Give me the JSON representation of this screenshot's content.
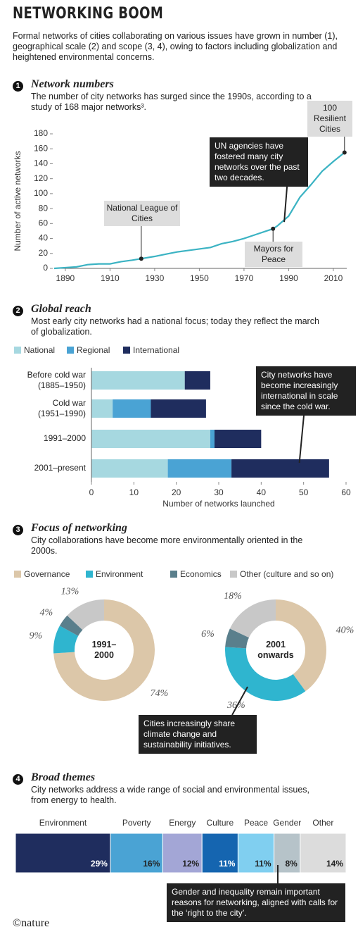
{
  "header": {
    "title": "NETWORKING BOOM",
    "subtitle": "Formal networks of cities collaborating on various issues have grown in number (1), geographical scale (2) and scope (3, 4), owing to factors including globalization and heightened environmental concerns."
  },
  "chart_data": [
    {
      "type": "line",
      "section": "1",
      "title": "Network numbers",
      "subtitle": "The number of city networks has surged since the 1990s, according to a study of 168 major networks³.",
      "ylabel": "Number of active networks",
      "x": [
        1885,
        1890,
        1895,
        1900,
        1905,
        1910,
        1915,
        1920,
        1924,
        1930,
        1935,
        1940,
        1945,
        1950,
        1955,
        1960,
        1965,
        1970,
        1975,
        1980,
        1983,
        1985,
        1990,
        1995,
        2000,
        2005,
        2010,
        2015
      ],
      "values": [
        0,
        1,
        2,
        5,
        6,
        6,
        9,
        11,
        13,
        16,
        19,
        22,
        24,
        26,
        28,
        33,
        36,
        40,
        45,
        50,
        53,
        57,
        70,
        95,
        112,
        130,
        143,
        155
      ],
      "color": "#3bb3c3",
      "xlim": [
        1885,
        2016
      ],
      "xticks": [
        1890,
        1910,
        1930,
        1950,
        1970,
        1990,
        2010
      ],
      "ylim": [
        0,
        180
      ],
      "yticks": [
        0,
        20,
        40,
        60,
        80,
        100,
        120,
        140,
        160,
        180
      ],
      "annotations": [
        {
          "text": "National League of Cities",
          "x": 1924,
          "y": 13
        },
        {
          "text": "Mayors for Peace",
          "x": 1983,
          "y": 53
        },
        {
          "text": "100 Resilient Cities",
          "x": 2015,
          "y": 155
        },
        {
          "text": "UN agencies have fostered many city networks over the past two decades.",
          "x": 1988,
          "y": 62
        }
      ]
    },
    {
      "type": "hbar_stacked",
      "section": "2",
      "title": "Global reach",
      "subtitle": "Most early city networks had a national focus; today they reflect the march of globalization.",
      "xlabel": "Number of networks launched",
      "categories": [
        "Before cold war\n(1885–1950)",
        "Cold war\n(1951–1990)",
        "1991–2000",
        "2001–present"
      ],
      "series": [
        {
          "name": "National",
          "color": "#a6d8e0",
          "values": [
            22,
            5,
            28,
            18
          ]
        },
        {
          "name": "Regional",
          "color": "#4aa3d4",
          "values": [
            0,
            9,
            1,
            15
          ]
        },
        {
          "name": "International",
          "color": "#1f2d5e",
          "values": [
            6,
            13,
            11,
            23
          ]
        }
      ],
      "xlim": [
        0,
        60
      ],
      "xticks": [
        0,
        10,
        20,
        30,
        40,
        50,
        60
      ],
      "annotations": [
        {
          "text": "City networks have become increasingly international in scale since the cold war.",
          "x": 49
        }
      ]
    },
    {
      "type": "pie",
      "section": "3",
      "title": "Focus of networking",
      "subtitle": "City collaborations have become more environmentally oriented in the 2000s.",
      "categories": [
        "Governance",
        "Environment",
        "Economics",
        "Other (culture and so on)"
      ],
      "colors": [
        "#dcc7a9",
        "#2fb5cf",
        "#5a7f8c",
        "#c8c8c8"
      ],
      "series": [
        {
          "name": "1991–\n2000",
          "values": [
            74,
            9,
            4,
            13
          ],
          "value_labels": [
            "74%",
            "9%",
            "4%",
            "13%"
          ]
        },
        {
          "name": "2001\nonwards",
          "values": [
            40,
            36,
            6,
            18
          ],
          "value_labels": [
            "40%",
            "36%",
            "6%",
            "18%"
          ]
        }
      ],
      "annotations": [
        {
          "text": "Cities increasingly share climate change and sustainability initiatives."
        }
      ]
    },
    {
      "type": "stacked_strip",
      "section": "4",
      "title": "Broad themes",
      "subtitle": "City networks address a wide range of social and environmental issues, from energy to health.",
      "categories": [
        "Environment",
        "Poverty",
        "Energy",
        "Culture",
        "Peace",
        "Gender",
        "Other"
      ],
      "values": [
        29,
        16,
        12,
        11,
        11,
        8,
        14
      ],
      "value_labels": [
        "29%",
        "16%",
        "12%",
        "11%",
        "11%",
        "8%",
        "14%"
      ],
      "colors": [
        "#1f2d5e",
        "#4aa3d4",
        "#a3a6d6",
        "#1565b0",
        "#80cff0",
        "#b6c3c9",
        "#dcdcdc"
      ],
      "annotations": [
        {
          "text": "Gender and inequality remain important reasons for networking, aligned with calls for the ‘right to the city’."
        }
      ]
    }
  ],
  "footer": "©nature"
}
